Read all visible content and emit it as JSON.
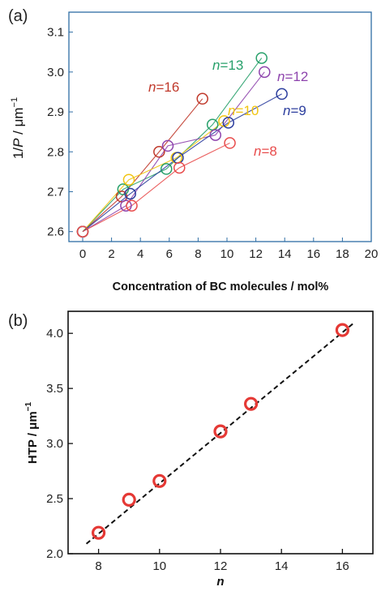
{
  "chart_data": [
    {
      "panel_label": "(a)",
      "type": "line",
      "xlabel": "Concentration of BC molecules / mol%",
      "ylabel_parts": [
        "1/",
        "P",
        " / ",
        "μ",
        "m",
        "−1"
      ],
      "xlim": [
        0,
        20
      ],
      "ylim": [
        2.575,
        3.15
      ],
      "x_ticks": [
        0,
        2,
        4,
        6,
        8,
        10,
        12,
        14,
        16,
        18,
        20
      ],
      "y_ticks": [
        2.6,
        2.7,
        2.8,
        2.9,
        3.0,
        3.1
      ],
      "x_tick_labels": [
        "0",
        "2",
        "4",
        "6",
        "8",
        "10",
        "12",
        "14",
        "16",
        "18",
        "20"
      ],
      "y_tick_labels": [
        "2.6",
        "2.7",
        "2.8",
        "2.9",
        "3.0",
        "3.1"
      ],
      "grid": false,
      "series": [
        {
          "label": "n=16",
          "n_value": 16,
          "color": "#c0392b",
          "x": [
            0,
            2.7,
            5.3,
            8.3
          ],
          "y": [
            2.6,
            2.688,
            2.8,
            2.933
          ]
        },
        {
          "label": "n=13",
          "n_value": 13,
          "color": "#27a06a",
          "x": [
            0,
            2.8,
            5.8,
            9.0,
            12.4
          ],
          "y": [
            2.6,
            2.706,
            2.757,
            2.868,
            3.035
          ]
        },
        {
          "label": "n=12",
          "n_value": 12,
          "color": "#8e44ad",
          "x": [
            0,
            3.0,
            5.9,
            9.2,
            12.6
          ],
          "y": [
            2.6,
            2.665,
            2.815,
            2.842,
            3.0
          ]
        },
        {
          "label": "n=10",
          "n_value": 10,
          "color": "#f1c40f",
          "x": [
            0,
            3.2,
            6.5,
            9.8
          ],
          "y": [
            2.6,
            2.73,
            2.785,
            2.877
          ]
        },
        {
          "label": "n=9",
          "n_value": 9,
          "color": "#2c3e9e",
          "x": [
            0,
            3.3,
            6.6,
            10.1,
            13.8
          ],
          "y": [
            2.6,
            2.695,
            2.785,
            2.873,
            2.945
          ]
        },
        {
          "label": "n=8",
          "n_value": 8,
          "color": "#e84c4c",
          "x": [
            0,
            3.4,
            6.7,
            10.2
          ],
          "y": [
            2.6,
            2.665,
            2.76,
            2.822
          ]
        }
      ]
    },
    {
      "panel_label": "(b)",
      "type": "scatter",
      "xlabel": "n",
      "ylabel_parts": [
        "HTP / ",
        "μ",
        "m",
        "−1"
      ],
      "xlim": [
        7,
        17
      ],
      "ylim": [
        2.0,
        4.2
      ],
      "x_ticks": [
        8,
        10,
        12,
        14,
        16
      ],
      "y_ticks": [
        2.0,
        2.5,
        3.0,
        3.5,
        4.0
      ],
      "x_tick_labels": [
        "8",
        "10",
        "12",
        "14",
        "16"
      ],
      "y_tick_labels": [
        "2.0",
        "2.5",
        "3.0",
        "3.5",
        "4.0"
      ],
      "grid": false,
      "points": {
        "x": [
          8,
          9,
          10,
          12,
          13,
          16
        ],
        "y": [
          2.19,
          2.49,
          2.66,
          3.11,
          3.36,
          4.03
        ]
      },
      "marker_color": "#e53935",
      "fit_line": {
        "style": "dashed",
        "color": "#111111",
        "x": [
          7.6,
          16.4
        ],
        "y": [
          2.09,
          4.1
        ]
      }
    }
  ]
}
